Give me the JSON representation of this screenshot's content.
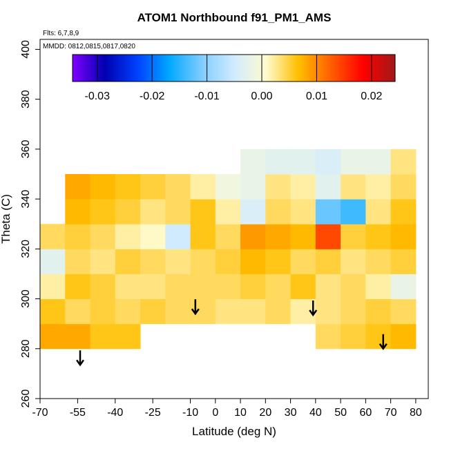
{
  "chart_data": {
    "type": "heatmap",
    "title": "ATOM1 Northbound f91_PM1_AMS",
    "subtitle": "Flts: 6,7,8,9",
    "annotation": "MMDD: 0812,0815,0817,0820",
    "x_label": "Latitude (deg N)",
    "y_label": "Theta (C)",
    "xlim": [
      -70,
      85
    ],
    "ylim": [
      260,
      404
    ],
    "xticks": [
      -70,
      -55,
      -40,
      -25,
      -10,
      0,
      10,
      20,
      30,
      40,
      50,
      60,
      70,
      80
    ],
    "yticks": [
      260,
      280,
      300,
      320,
      340,
      360,
      380,
      400
    ],
    "x": [
      -65,
      -55,
      -45,
      -35,
      -25,
      -15,
      -5,
      5,
      15,
      25,
      35,
      45,
      55,
      65,
      75
    ],
    "y": [
      285,
      295,
      305,
      315,
      325,
      335,
      345,
      355
    ],
    "z": [
      [
        0.008,
        0.008,
        0.006,
        0.006,
        null,
        null,
        null,
        null,
        null,
        null,
        null,
        0.004,
        0.005,
        0.006,
        0.007
      ],
      [
        0.006,
        0.004,
        0.005,
        0.004,
        0.005,
        0.004,
        0.004,
        0.003,
        0.003,
        0.004,
        0.002,
        0.003,
        0.004,
        0.005,
        0.004
      ],
      [
        0.002,
        0.006,
        0.005,
        0.003,
        0.003,
        0.004,
        0.004,
        0.004,
        0.005,
        0.004,
        0.006,
        0.003,
        0.004,
        0.002,
        -0.002
      ],
      [
        -0.003,
        0.004,
        0.003,
        0.005,
        0.004,
        0.003,
        0.004,
        0.005,
        0.007,
        0.006,
        0.004,
        0.005,
        0.003,
        0.004,
        0.005
      ],
      [
        0.004,
        0.005,
        0.004,
        0.002,
        0.001,
        -0.005,
        0.006,
        0.004,
        0.009,
        0.008,
        0.007,
        0.014,
        0.005,
        0.006,
        0.007
      ],
      [
        null,
        0.007,
        0.006,
        0.005,
        0.003,
        0.004,
        0.006,
        0.002,
        -0.004,
        0.004,
        0.003,
        -0.012,
        -0.014,
        0.003,
        0.006
      ],
      [
        null,
        0.008,
        0.007,
        0.006,
        0.005,
        0.004,
        0.002,
        -0.001,
        -0.002,
        0.003,
        0.002,
        -0.003,
        0.003,
        0.002,
        0.004
      ],
      [
        null,
        null,
        null,
        null,
        null,
        null,
        null,
        null,
        -0.002,
        -0.003,
        -0.003,
        -0.004,
        -0.002,
        -0.002,
        0.003
      ]
    ],
    "zlim": [
      -0.0345,
      0.0243
    ],
    "colorbar_ticks": [
      -0.03,
      -0.02,
      -0.01,
      {
        "value": 0,
        "label": "0.00"
      },
      0.01,
      0.02
    ],
    "colorscale": [
      "#8000ff",
      "#0000b0",
      "#0040ff",
      "#00a8ff",
      "#80ccff",
      "#d0ebff",
      "#fffbd0",
      "#ffbf00",
      "#ff6000",
      "#ff0000",
      "#a01818"
    ],
    "arrows": {
      "x": [
        -54,
        -8,
        39,
        67
      ],
      "y": [
        273.5,
        294,
        293.5,
        280
      ]
    }
  }
}
